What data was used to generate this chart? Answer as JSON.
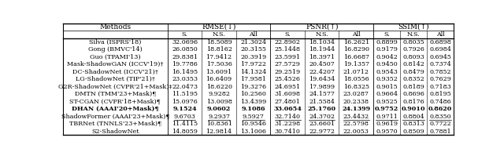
{
  "headers_main": [
    "Methods",
    "RMSE(↓)",
    "PSNR(↑)",
    "SSIM(↑)"
  ],
  "subheaders": [
    "S.",
    "N.S.",
    "All",
    "S.",
    "N.S.",
    "All",
    "S.",
    "N.S.",
    "All"
  ],
  "rows": [
    [
      "Silva (ISPRS'18)",
      "32.0696",
      "18.5089",
      "21.3024",
      "22.8902",
      "18.1034",
      "16.2621",
      "0.8899",
      "0.8035",
      "0.6898"
    ],
    [
      "Gong (BMVC'14)",
      "26.0850",
      "18.8162",
      "20.3155",
      "25.1448",
      "18.1944",
      "16.8290",
      "0.9179",
      "0.7926",
      "0.6984"
    ],
    [
      "Guo (TPAMI'13)",
      "29.8381",
      "17.9412",
      "20.3919",
      "23.5991",
      "18.3971",
      "16.6687",
      "0.9042",
      "0.8093",
      "0.6945"
    ],
    [
      "Mask-ShadowGAN (ICCV'19)†",
      "19.7786",
      "17.5036",
      "17.9722",
      "27.5729",
      "20.4507",
      "19.1357",
      "0.9450",
      "0.8142",
      "0.7374"
    ],
    [
      "DC-ShadowNet (ICCV'21)†",
      "16.1495",
      "13.6091",
      "14.1324",
      "29.2519",
      "22.4207",
      "21.0712",
      "0.9543",
      "0.8479",
      "0.7852"
    ],
    [
      "LG-ShadowNet (TIP'21)†",
      "23.0353",
      "16.6409",
      "17.9581",
      "25.4526",
      "19.6434",
      "18.0556",
      "0.9352",
      "0.8352",
      "0.7629"
    ],
    [
      "G2R-ShadowNet (CVPR'21+Mask)‡",
      "22.0473",
      "18.6220",
      "19.3276",
      "24.6951",
      "17.9899",
      "16.8325",
      "0.9015",
      "0.8189",
      "0.7183"
    ],
    [
      "DMTN (TMM'23+Mask)¶",
      "11.5195",
      "9.9282",
      "10.2560",
      "31.6098",
      "24.1577",
      "23.0287",
      "0.9664",
      "0.8696",
      "0.8195"
    ],
    [
      "ST-CGAN (CVPR'18+Mask)¶",
      "15.0976",
      "13.0098",
      "13.4399",
      "27.4801",
      "21.5584",
      "20.2338",
      "0.9525",
      "0.8176",
      "0.7486"
    ],
    [
      "DHAN (AAAI'20+Mask)¶",
      "9.1524",
      "9.0602",
      "9.1086",
      "33.0654",
      "25.1760",
      "24.1399",
      "0.9752",
      "0.9010",
      "0.8620"
    ],
    [
      "ShadowFormer (AAAI'23+Mask)¶",
      "9.6703",
      "9.2937",
      "9.5927",
      "32.7140",
      "24.3702",
      "23.4432",
      "0.9711",
      "0.8804",
      "0.8350"
    ],
    [
      "TBRNet (TNNLS'23+Mask)¶",
      "11.4115",
      "10.8361",
      "10.9546",
      "31.2298",
      "23.6601",
      "22.5798",
      "0.9619",
      "0.8313",
      "0.7722"
    ],
    [
      "S2-ShadowNet",
      "14.8059",
      "12.9814",
      "13.1006",
      "30.7410",
      "22.9772",
      "22.0053",
      "0.9570",
      "0.8509",
      "0.7881"
    ]
  ],
  "bold_row": 9,
  "underline_rows": [
    9,
    10
  ],
  "bg_color": "#ffffff",
  "fontsize": 5.8,
  "header_fontsize": 6.5
}
